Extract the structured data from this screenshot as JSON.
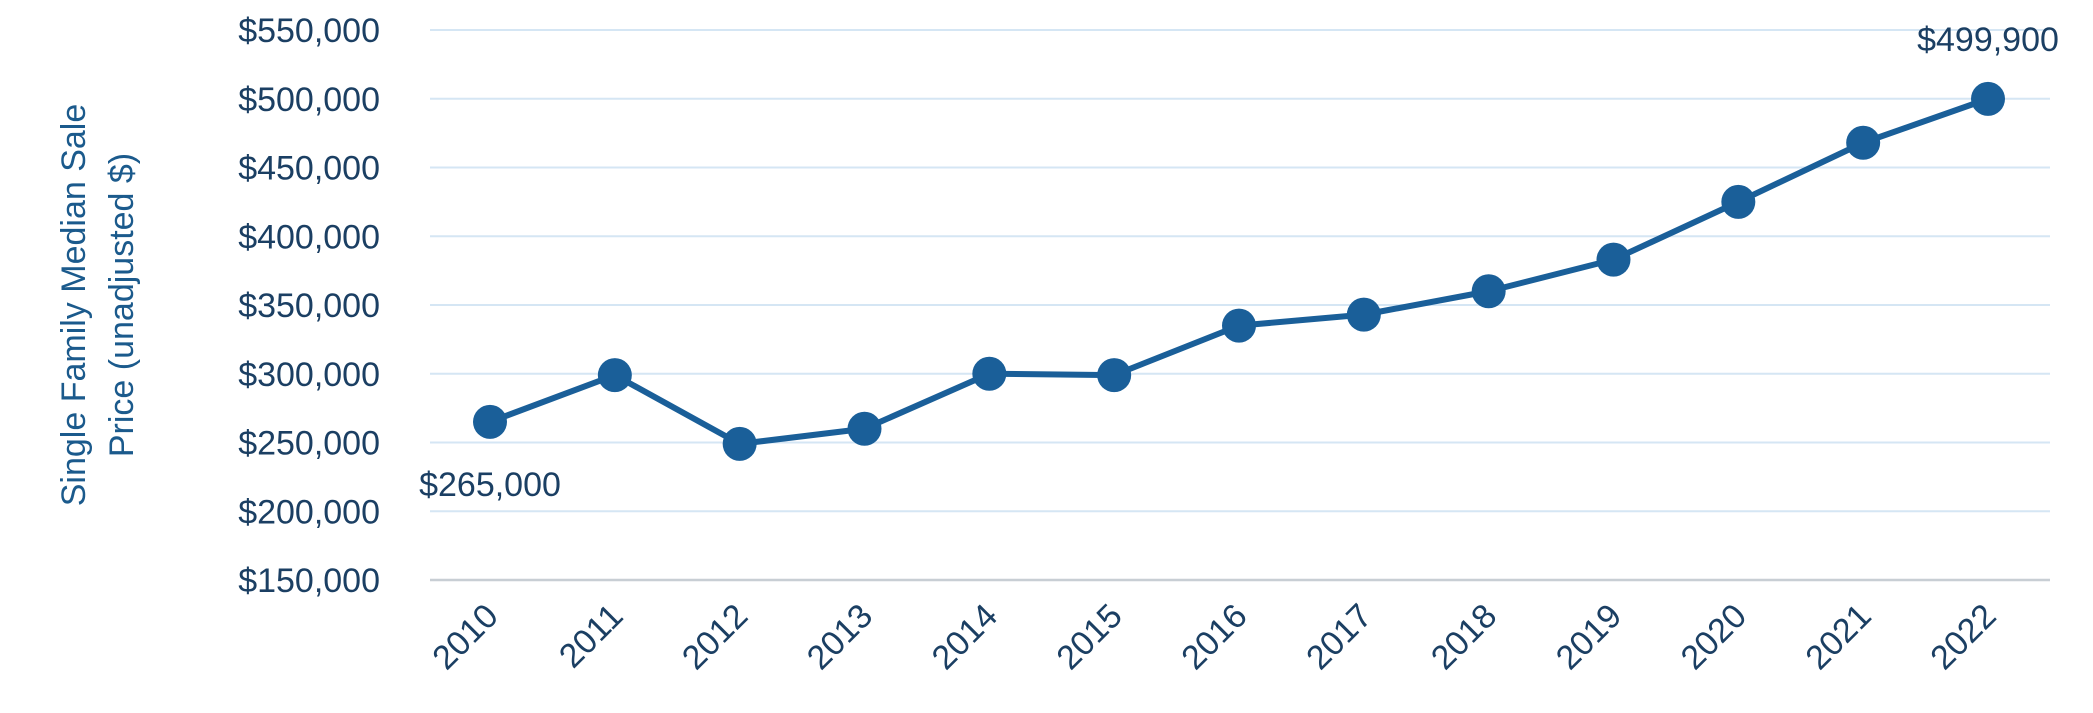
{
  "chart_data": {
    "type": "line",
    "title": "",
    "xlabel": "",
    "ylabel_lines": [
      "Single Family Median Sale",
      "Price (unadjusted $)"
    ],
    "categories": [
      "2010",
      "2011",
      "2012",
      "2013",
      "2014",
      "2015",
      "2016",
      "2017",
      "2018",
      "2019",
      "2020",
      "2021",
      "2022"
    ],
    "series": [
      {
        "values": [
          265000,
          299000,
          249000,
          260000,
          300000,
          299000,
          335000,
          343000,
          360000,
          383000,
          425000,
          468000,
          499900
        ]
      }
    ],
    "ylim": [
      150000,
      550000
    ],
    "yticks": [
      150000,
      200000,
      250000,
      300000,
      350000,
      400000,
      450000,
      500000,
      550000
    ],
    "ytick_labels": [
      "$150,000",
      "$200,000",
      "$250,000",
      "$300,000",
      "$350,000",
      "$400,000",
      "$450,000",
      "$500,000",
      "$550,000"
    ],
    "data_labels": [
      {
        "index": 0,
        "text": "$265,000",
        "position": "below"
      },
      {
        "index": 12,
        "text": "$499,900",
        "position": "above"
      }
    ],
    "grid": true,
    "colors": {
      "line": "#1a5f99",
      "grid": "#d5e6f4",
      "baseline": "#c8ced4",
      "text": "#1b3f63",
      "axis_title": "#1b5a8c"
    }
  }
}
